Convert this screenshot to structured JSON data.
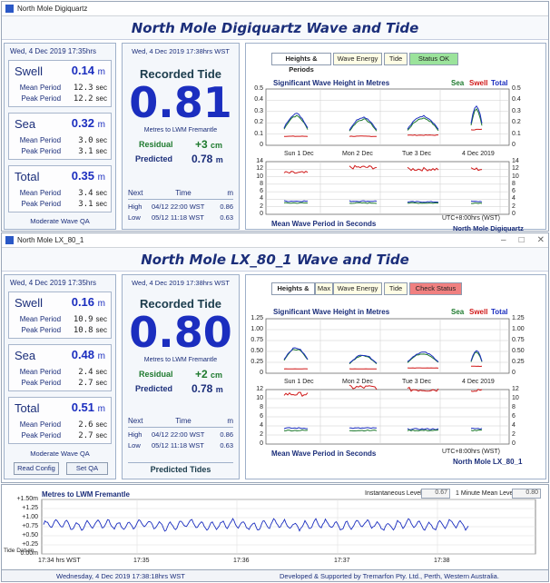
{
  "windows": [
    {
      "window_title": "North Mole Digiquartz",
      "banner": "North Mole Digiquartz Wave and Tide",
      "left": {
        "date": "Wed, 4 Dec 2019   17:35hrs",
        "swell": {
          "label": "Swell",
          "value": "0.14",
          "unit": "m",
          "mean_label": "Mean Period",
          "mean": "12.3",
          "peak_label": "Peak Period",
          "peak": "12.2",
          "sec": "sec"
        },
        "sea": {
          "label": "Sea",
          "value": "0.32",
          "unit": "m",
          "mean_label": "Mean Period",
          "mean": "3.0",
          "peak_label": "Peak Period",
          "peak": "3.1",
          "sec": "sec"
        },
        "total": {
          "label": "Total",
          "value": "0.35",
          "unit": "m",
          "mean_label": "Mean Period",
          "mean": "3.4",
          "peak_label": "Peak Period",
          "peak": "3.1",
          "sec": "sec"
        },
        "qa": "Moderate Wave QA"
      },
      "tide": {
        "date": "Wed, 4 Dec 2019  17:38hrs  WST",
        "title": "Recorded Tide",
        "value": "0.81",
        "sub": "Metres to LWM Fremantle",
        "residual_label": "Residual",
        "residual": "+3",
        "residual_unit": "cm",
        "predicted_label": "Predicted",
        "predicted": "0.78",
        "predicted_unit": "m",
        "table_head": [
          "Next",
          "Time",
          "m"
        ],
        "rows": [
          [
            "High",
            "04/12 22:00 WST",
            "0.86"
          ],
          [
            "Low",
            "05/12 11:18 WST",
            "0.63"
          ]
        ]
      },
      "tabs": [
        "Heights & Periods",
        "Wave Energy",
        "Tide",
        "Status OK"
      ],
      "chart": {
        "title": "Significant Wave Height in Metres",
        "legend": [
          "Sea",
          "Swell",
          "Total"
        ],
        "y_ticks_top": [
          "0.5",
          "0.4",
          "0.3",
          "0.2",
          "0.1",
          "0"
        ],
        "x_ticks": [
          "Sun 1 Dec",
          "Mon 2 Dec",
          "Tue 3 Dec",
          "4 Dec 2019"
        ],
        "y_ticks_bottom": [
          "14",
          "12",
          "10",
          "8",
          "6",
          "4",
          "2",
          "0"
        ],
        "bottom_title": "Mean Wave Period in Seconds",
        "utc": "UTC+8:00hrs (WST)",
        "station": "North Mole Digiquartz"
      }
    },
    {
      "window_title": "North Mole LX_80_1",
      "banner": "North Mole LX_80_1 Wave and Tide",
      "left": {
        "date": "Wed, 4 Dec 2019   17:35hrs",
        "swell": {
          "label": "Swell",
          "value": "0.16",
          "unit": "m",
          "mean_label": "Mean Period",
          "mean": "10.9",
          "peak_label": "Peak Period",
          "peak": "10.8",
          "sec": "sec"
        },
        "sea": {
          "label": "Sea",
          "value": "0.48",
          "unit": "m",
          "mean_label": "Mean Period",
          "mean": "2.4",
          "peak_label": "Peak Period",
          "peak": "2.7",
          "sec": "sec"
        },
        "total": {
          "label": "Total",
          "value": "0.51",
          "unit": "m",
          "mean_label": "Mean Period",
          "mean": "2.6",
          "peak_label": "Peak Period",
          "peak": "2.7",
          "sec": "sec"
        },
        "qa": "Moderate Wave QA",
        "buttons": [
          "Read Config",
          "Set QA"
        ]
      },
      "tide": {
        "date": "Wed, 4 Dec 2019  17:38hrs  WST",
        "title": "Recorded Tide",
        "value": "0.80",
        "sub": "Metres to LWM Fremantle",
        "residual_label": "Residual",
        "residual": "+2",
        "residual_unit": "cm",
        "predicted_label": "Predicted",
        "predicted": "0.78",
        "predicted_unit": "m",
        "table_head": [
          "Next",
          "Time",
          "m"
        ],
        "rows": [
          [
            "High",
            "04/12 22:00 WST",
            "0.86"
          ],
          [
            "Low",
            "05/12 11:18 WST",
            "0.63"
          ]
        ],
        "predicted_tides": "Predicted Tides"
      },
      "tabs": [
        "Heights & Pe",
        "Max H",
        "Wave Energy",
        "Tide",
        "Check Status"
      ],
      "chart": {
        "title": "Significant Wave Height in Metres",
        "legend": [
          "Sea",
          "Swell",
          "Total"
        ],
        "y_ticks_top": [
          "1.25",
          "1.00",
          "0.75",
          "0.50",
          "0.25",
          "0"
        ],
        "x_ticks": [
          "Sun 1 Dec",
          "Mon 2 Dec",
          "Tue 3 Dec",
          "4 Dec 2019"
        ],
        "y_ticks_bottom": [
          "12",
          "10",
          "8",
          "6",
          "4",
          "2",
          "0"
        ],
        "bottom_title": "Mean Wave Period in Seconds",
        "utc": "UTC+8:00hrs (WST)",
        "station": "North Mole LX_80_1"
      }
    }
  ],
  "bottom": {
    "chart_title": "Metres to LWM Fremantle",
    "inst_label": "Instantaneous Level",
    "inst_value": "0.67",
    "mean_label": "1 Minute Mean Level",
    "mean_value": "0.80",
    "y_ticks": [
      "+1.50m",
      "+1.25",
      "+1.00",
      "+0.75",
      "+0.50",
      "+0.25",
      "0.00m"
    ],
    "datum_label": "Tide Datum",
    "x_ticks": [
      "17:34 hrs WST",
      "17:35",
      "17:36",
      "17:37",
      "17:38"
    ],
    "status_date": "Wednesday,  4 Dec 2019   17:38:18hrs  WST",
    "status_credit": "Developed & Supported by Tremarfon Pty. Ltd.,   Perth,   Western Australia."
  },
  "colors": {
    "sea": "#1e7a2e",
    "swell": "#d01818",
    "total": "#1b2ebf",
    "status_ok": "#9be39b",
    "check_status": "#f08080"
  },
  "chart_data": [
    {
      "type": "line",
      "title": "Significant Wave Height in Metres",
      "station": "North Mole Digiquartz",
      "x": [
        "Sun 1 Dec",
        "Mon 2 Dec",
        "Tue 3 Dec",
        "4 Dec 2019"
      ],
      "ylim": [
        0,
        0.5
      ],
      "series": [
        {
          "name": "Sea",
          "values": [
            0.26,
            0.23,
            0.24,
            0.32
          ]
        },
        {
          "name": "Swell",
          "values": [
            0.08,
            0.08,
            0.09,
            0.14
          ]
        },
        {
          "name": "Total",
          "values": [
            0.28,
            0.25,
            0.26,
            0.35
          ]
        }
      ]
    },
    {
      "type": "line",
      "title": "Significant Wave Height in Metres",
      "station": "North Mole LX_80_1",
      "x": [
        "Sun 1 Dec",
        "Mon 2 Dec",
        "Tue 3 Dec",
        "4 Dec 2019"
      ],
      "ylim": [
        0,
        1.25
      ],
      "series": [
        {
          "name": "Sea",
          "values": [
            0.55,
            0.4,
            0.45,
            0.48
          ]
        },
        {
          "name": "Swell",
          "values": [
            0.1,
            0.1,
            0.12,
            0.16
          ]
        },
        {
          "name": "Total",
          "values": [
            0.58,
            0.42,
            0.48,
            0.51
          ]
        }
      ]
    },
    {
      "type": "line",
      "title": "Metres to LWM Fremantle",
      "x": [
        "17:34",
        "17:35",
        "17:36",
        "17:37",
        "17:38"
      ],
      "ylim": [
        0,
        1.5
      ],
      "series": [
        {
          "values": [
            0.8,
            0.78,
            0.82,
            0.79,
            0.8
          ]
        }
      ]
    }
  ]
}
